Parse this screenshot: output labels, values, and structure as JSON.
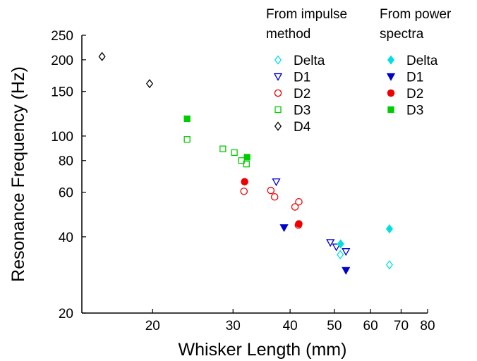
{
  "chart_data": {
    "type": "scatter",
    "title": "",
    "xlabel": "Whisker Length (mm)",
    "ylabel": "Resonance Frequency (Hz)",
    "xscale": "log",
    "yscale": "log",
    "xlim": [
      14,
      80
    ],
    "ylim": [
      20,
      250
    ],
    "grid": false,
    "xticks": [
      20,
      30,
      40,
      50,
      60,
      70,
      80
    ],
    "yticks": [
      20,
      40,
      60,
      80,
      100,
      150,
      200,
      250
    ],
    "legend_groups": [
      {
        "heading": [
          "From impulse",
          "method"
        ],
        "filled": false
      },
      {
        "heading": [
          "From power",
          "spectra"
        ],
        "filled": true
      }
    ],
    "series": [
      {
        "name": "Delta",
        "method": "impulse",
        "marker": "diamond",
        "filled": false,
        "color": "#00e0e0",
        "x": [
          51.5,
          66
        ],
        "y": [
          34,
          31
        ]
      },
      {
        "name": "D1",
        "method": "impulse",
        "marker": "triangle-down",
        "filled": false,
        "color": "#0000cc",
        "x": [
          37.3,
          49,
          50.5,
          53
        ],
        "y": [
          66,
          38,
          36.5,
          35
        ]
      },
      {
        "name": "D2",
        "method": "impulse",
        "marker": "circle",
        "filled": false,
        "color": "#ee0000",
        "x": [
          31.7,
          36.3,
          37,
          41,
          41.8,
          41.7
        ],
        "y": [
          60.5,
          61,
          57.5,
          52.5,
          55,
          44.5
        ]
      },
      {
        "name": "D3",
        "method": "impulse",
        "marker": "square",
        "filled": false,
        "color": "#00cc00",
        "x": [
          23.8,
          28.5,
          30.2,
          31.3,
          32.1
        ],
        "y": [
          97,
          89,
          86,
          80,
          77.5
        ]
      },
      {
        "name": "D4",
        "method": "impulse",
        "marker": "diamond",
        "filled": false,
        "color": "#000000",
        "x": [
          15.5,
          19.7
        ],
        "y": [
          206,
          161
        ]
      },
      {
        "name": "Delta",
        "method": "power spectra",
        "marker": "diamond",
        "filled": true,
        "color": "#00e0e0",
        "x": [
          51.6,
          66
        ],
        "y": [
          37.5,
          43
        ]
      },
      {
        "name": "D1",
        "method": "power spectra",
        "marker": "triangle-down",
        "filled": true,
        "color": "#0000cc",
        "x": [
          38.8,
          53
        ],
        "y": [
          43.5,
          29.5
        ]
      },
      {
        "name": "D2",
        "method": "power spectra",
        "marker": "circle",
        "filled": true,
        "color": "#ee0000",
        "x": [
          31.8,
          41.8
        ],
        "y": [
          66,
          45
        ]
      },
      {
        "name": "D3",
        "method": "power spectra",
        "marker": "square",
        "filled": true,
        "color": "#00cc00",
        "x": [
          23.8,
          32.2
        ],
        "y": [
          117,
          82.5
        ]
      }
    ]
  }
}
